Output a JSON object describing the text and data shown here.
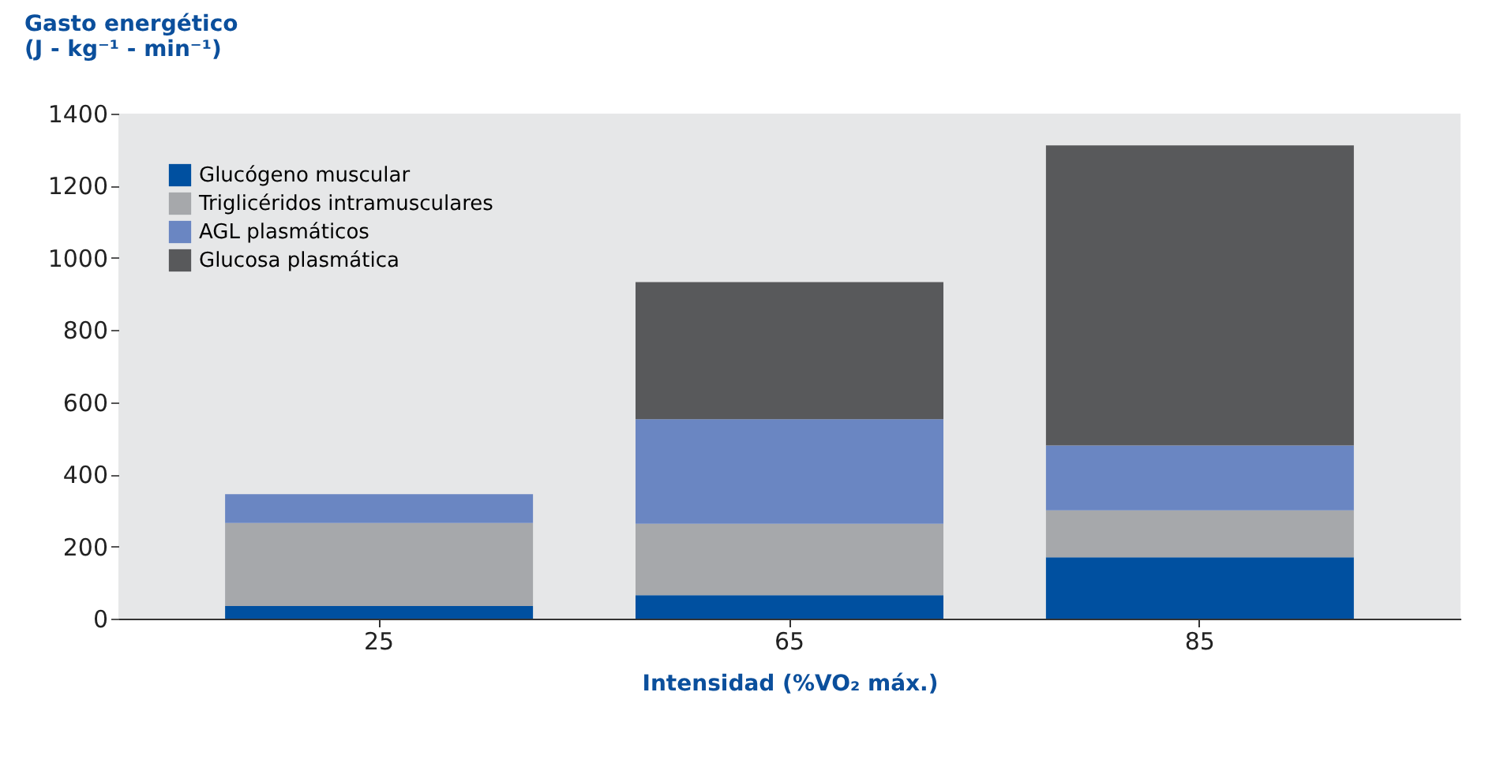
{
  "chart_data": {
    "type": "bar",
    "stacked": true,
    "ylabel": "Gasto energético\n(J - kg⁻¹ - min⁻¹)",
    "xlabel": "Intensidad (%VO₂ máx.)",
    "categories": [
      "25",
      "65",
      "85"
    ],
    "series": [
      {
        "name": "Glucógeno muscular",
        "color": "#0050a0",
        "values": [
          35,
          65,
          170
        ]
      },
      {
        "name": "Triglicéridos intramusculares",
        "color": "#a6a8ab",
        "values": [
          230,
          198,
          130
        ]
      },
      {
        "name": "AGL plasmáticos",
        "color": "#6a86c2",
        "values": [
          80,
          290,
          180
        ]
      },
      {
        "name": "Glucosa plasmática",
        "color": "#58595b",
        "values": [
          null,
          380,
          832
        ]
      }
    ],
    "ylim": [
      0,
      1400
    ],
    "yticks": [
      0,
      200,
      400,
      600,
      800,
      1000,
      1200,
      1400
    ],
    "grid": false,
    "legend": "top left"
  }
}
